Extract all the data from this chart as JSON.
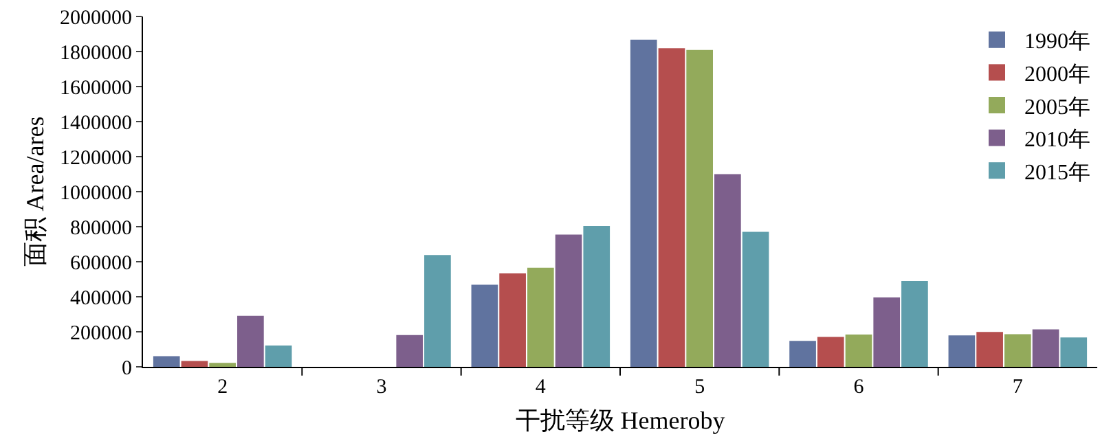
{
  "chart_data": {
    "type": "bar",
    "xlabel": "干扰等级 Hemeroby",
    "ylabel": "面积 Area/ares",
    "categories": [
      "2",
      "3",
      "4",
      "5",
      "6",
      "7"
    ],
    "series": [
      {
        "name": "1990年",
        "color": "#60739f",
        "values": [
          61000,
          0,
          469000,
          1868000,
          148000,
          179000
        ]
      },
      {
        "name": "2000年",
        "color": "#b54e4e",
        "values": [
          33000,
          0,
          533000,
          1819000,
          171000,
          199000
        ]
      },
      {
        "name": "2005年",
        "color": "#93aa5b",
        "values": [
          23000,
          0,
          566000,
          1809000,
          184000,
          186000
        ]
      },
      {
        "name": "2010年",
        "color": "#7d5f8c",
        "values": [
          291000,
          181000,
          755000,
          1100000,
          396000,
          214000
        ]
      },
      {
        "name": "2015年",
        "color": "#5f9eab",
        "values": [
          122000,
          638000,
          804000,
          771000,
          490000,
          168000
        ]
      }
    ],
    "ylim": [
      0,
      2000000
    ],
    "yticks": [
      0,
      200000,
      400000,
      600000,
      800000,
      1000000,
      1200000,
      1400000,
      1600000,
      1800000,
      2000000
    ],
    "legend": "top right"
  }
}
